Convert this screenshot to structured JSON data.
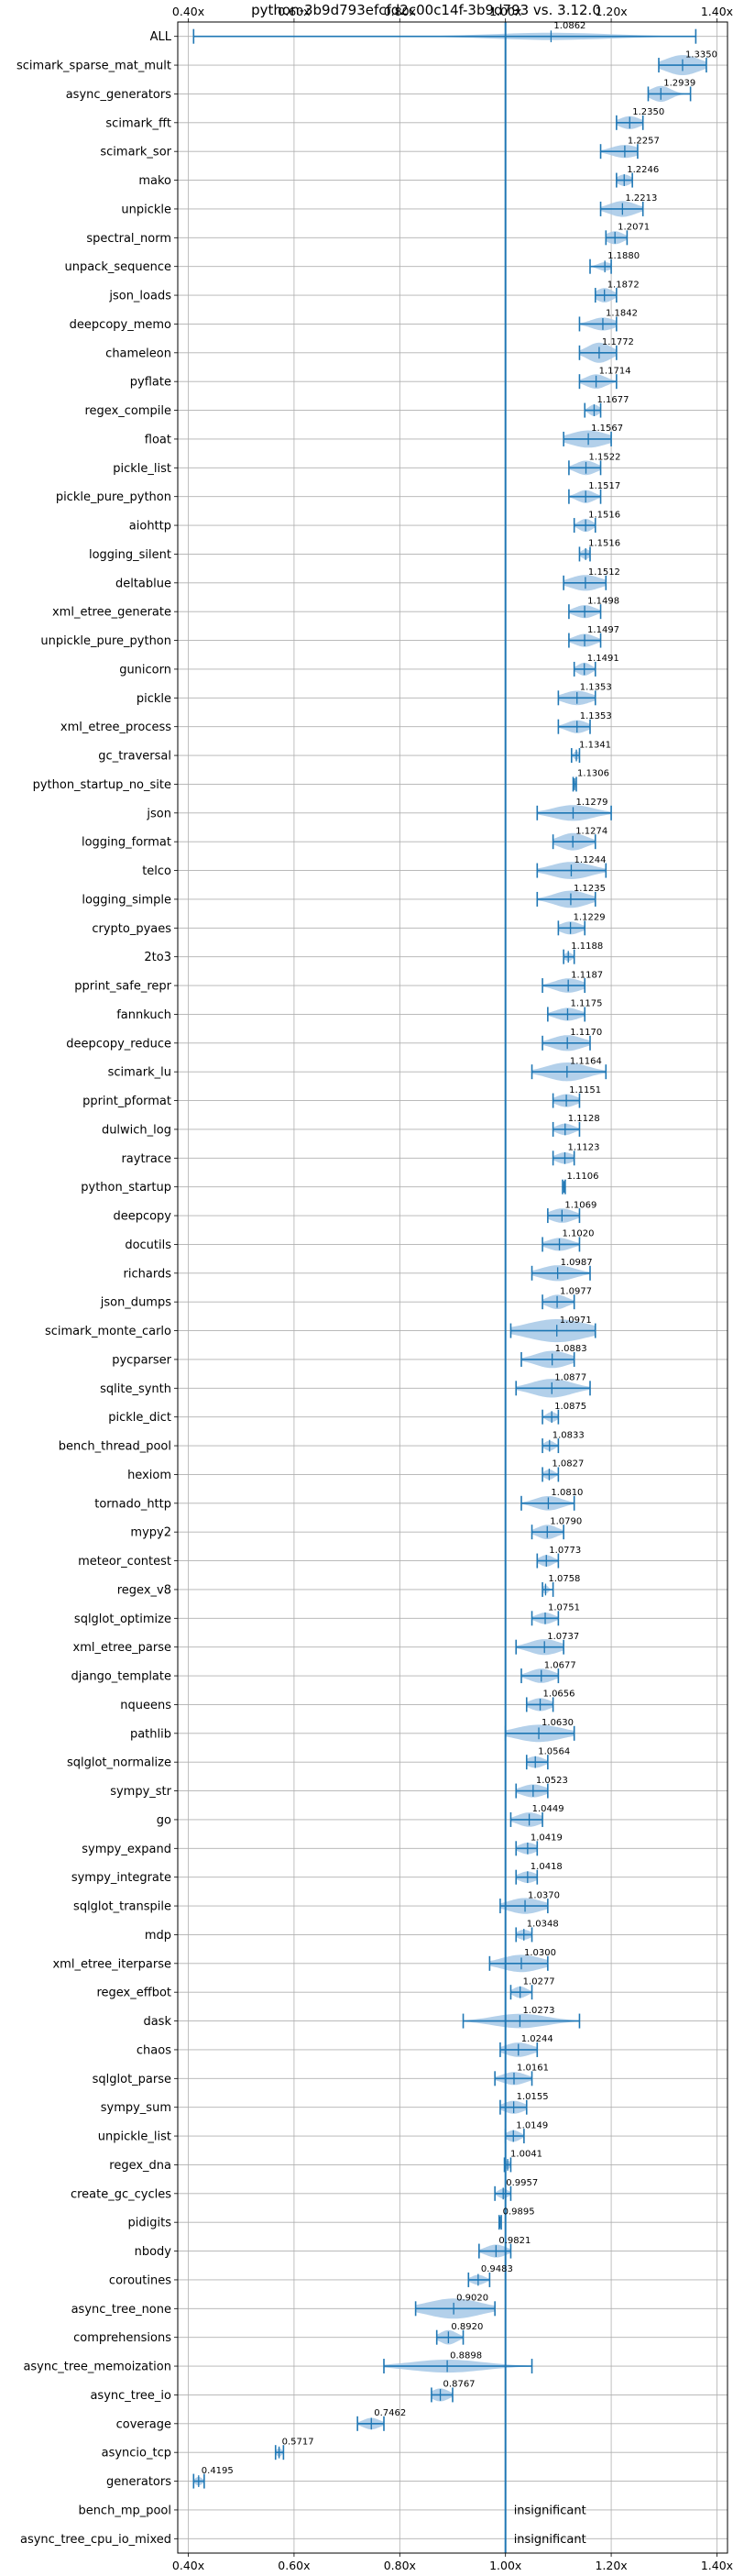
{
  "chart_data": {
    "type": "violin",
    "title": "python-3b9d793efcfd2c00c14f-3b9d793 vs. 3.12.0",
    "xlabel": "",
    "ylabel": "",
    "xlim": [
      0.38,
      1.42
    ],
    "x_ticks": [
      {
        "value": 0.4,
        "label": "0.40x"
      },
      {
        "value": 0.6,
        "label": "0.60x"
      },
      {
        "value": 0.8,
        "label": "0.80x"
      },
      {
        "value": 1.0,
        "label": "1.00x"
      },
      {
        "value": 1.2,
        "label": "1.20x"
      },
      {
        "value": 1.4,
        "label": "1.40x"
      }
    ],
    "grid": true,
    "reference_line": 1.0,
    "accent_color": "#1f77b4",
    "violin_color": "#a6c8e6",
    "insignificant_label": "insignificant",
    "benchmarks": [
      {
        "name": "ALL",
        "value": 1.0862,
        "label": "1.0862",
        "min": 0.41,
        "max": 1.36,
        "q1": 1.0,
        "q3": 1.18,
        "w": 0.25
      },
      {
        "name": "scimark_sparse_mat_mult",
        "value": 1.335,
        "label": "1.3350",
        "min": 1.29,
        "max": 1.38,
        "q1": 1.31,
        "q3": 1.36,
        "w": 0.7
      },
      {
        "name": "async_generators",
        "value": 1.2939,
        "label": "1.2939",
        "min": 1.27,
        "max": 1.35,
        "q1": 1.28,
        "q3": 1.31,
        "w": 0.55
      },
      {
        "name": "scimark_fft",
        "value": 1.235,
        "label": "1.2350",
        "min": 1.21,
        "max": 1.26,
        "q1": 1.22,
        "q3": 1.25,
        "w": 0.45
      },
      {
        "name": "scimark_sor",
        "value": 1.2257,
        "label": "1.2257",
        "min": 1.18,
        "max": 1.25,
        "q1": 1.2,
        "q3": 1.24,
        "w": 0.45
      },
      {
        "name": "mako",
        "value": 1.2246,
        "label": "1.2246",
        "min": 1.21,
        "max": 1.24,
        "q1": 1.215,
        "q3": 1.235,
        "w": 0.4
      },
      {
        "name": "unpickle",
        "value": 1.2213,
        "label": "1.2213",
        "min": 1.18,
        "max": 1.26,
        "q1": 1.2,
        "q3": 1.24,
        "w": 0.55
      },
      {
        "name": "spectral_norm",
        "value": 1.2071,
        "label": "1.2071",
        "min": 1.19,
        "max": 1.23,
        "q1": 1.195,
        "q3": 1.22,
        "w": 0.45
      },
      {
        "name": "unpack_sequence",
        "value": 1.188,
        "label": "1.1880",
        "min": 1.16,
        "max": 1.2,
        "q1": 1.175,
        "q3": 1.195,
        "w": 0.3
      },
      {
        "name": "json_loads",
        "value": 1.1872,
        "label": "1.1872",
        "min": 1.17,
        "max": 1.21,
        "q1": 1.175,
        "q3": 1.2,
        "w": 0.5
      },
      {
        "name": "deepcopy_memo",
        "value": 1.1842,
        "label": "1.1842",
        "min": 1.14,
        "max": 1.21,
        "q1": 1.165,
        "q3": 1.2,
        "w": 0.45
      },
      {
        "name": "chameleon",
        "value": 1.1772,
        "label": "1.1772",
        "min": 1.14,
        "max": 1.21,
        "q1": 1.16,
        "q3": 1.195,
        "w": 0.7
      },
      {
        "name": "pyflate",
        "value": 1.1714,
        "label": "1.1714",
        "min": 1.14,
        "max": 1.21,
        "q1": 1.16,
        "q3": 1.19,
        "w": 0.5
      },
      {
        "name": "regex_compile",
        "value": 1.1677,
        "label": "1.1677",
        "min": 1.15,
        "max": 1.18,
        "q1": 1.16,
        "q3": 1.175,
        "w": 0.4
      },
      {
        "name": "float",
        "value": 1.1567,
        "label": "1.1567",
        "min": 1.11,
        "max": 1.2,
        "q1": 1.13,
        "q3": 1.185,
        "w": 0.6
      },
      {
        "name": "pickle_list",
        "value": 1.1522,
        "label": "1.1522",
        "min": 1.12,
        "max": 1.18,
        "q1": 1.14,
        "q3": 1.17,
        "w": 0.5
      },
      {
        "name": "pickle_pure_python",
        "value": 1.1517,
        "label": "1.1517",
        "min": 1.12,
        "max": 1.18,
        "q1": 1.14,
        "q3": 1.165,
        "w": 0.45
      },
      {
        "name": "aiohttp",
        "value": 1.1516,
        "label": "1.1516",
        "min": 1.13,
        "max": 1.17,
        "q1": 1.14,
        "q3": 1.16,
        "w": 0.45
      },
      {
        "name": "logging_silent",
        "value": 1.1516,
        "label": "1.1516",
        "min": 1.14,
        "max": 1.16,
        "q1": 1.145,
        "q3": 1.158,
        "w": 0.35
      },
      {
        "name": "deltablue",
        "value": 1.1512,
        "label": "1.1512",
        "min": 1.11,
        "max": 1.19,
        "q1": 1.13,
        "q3": 1.175,
        "w": 0.55
      },
      {
        "name": "xml_etree_generate",
        "value": 1.1498,
        "label": "1.1498",
        "min": 1.12,
        "max": 1.18,
        "q1": 1.135,
        "q3": 1.165,
        "w": 0.45
      },
      {
        "name": "unpickle_pure_python",
        "value": 1.1497,
        "label": "1.1497",
        "min": 1.12,
        "max": 1.18,
        "q1": 1.135,
        "q3": 1.165,
        "w": 0.45
      },
      {
        "name": "gunicorn",
        "value": 1.1491,
        "label": "1.1491",
        "min": 1.13,
        "max": 1.17,
        "q1": 1.14,
        "q3": 1.16,
        "w": 0.45
      },
      {
        "name": "pickle",
        "value": 1.1353,
        "label": "1.1353",
        "min": 1.1,
        "max": 1.17,
        "q1": 1.115,
        "q3": 1.155,
        "w": 0.5
      },
      {
        "name": "xml_etree_process",
        "value": 1.1353,
        "label": "1.1353",
        "min": 1.1,
        "max": 1.16,
        "q1": 1.12,
        "q3": 1.15,
        "w": 0.45
      },
      {
        "name": "gc_traversal",
        "value": 1.1341,
        "label": "1.1341",
        "min": 1.125,
        "max": 1.14,
        "q1": 1.13,
        "q3": 1.138,
        "w": 0.3
      },
      {
        "name": "python_startup_no_site",
        "value": 1.1306,
        "label": "1.1306",
        "min": 1.128,
        "max": 1.134,
        "q1": 1.129,
        "q3": 1.132,
        "w": 0.25
      },
      {
        "name": "json",
        "value": 1.1279,
        "label": "1.1279",
        "min": 1.06,
        "max": 1.2,
        "q1": 1.1,
        "q3": 1.16,
        "w": 0.55
      },
      {
        "name": "logging_format",
        "value": 1.1274,
        "label": "1.1274",
        "min": 1.09,
        "max": 1.17,
        "q1": 1.11,
        "q3": 1.15,
        "w": 0.6
      },
      {
        "name": "telco",
        "value": 1.1244,
        "label": "1.1244",
        "min": 1.06,
        "max": 1.19,
        "q1": 1.1,
        "q3": 1.16,
        "w": 0.6
      },
      {
        "name": "logging_simple",
        "value": 1.1235,
        "label": "1.1235",
        "min": 1.06,
        "max": 1.17,
        "q1": 1.1,
        "q3": 1.15,
        "w": 0.6
      },
      {
        "name": "crypto_pyaes",
        "value": 1.1229,
        "label": "1.1229",
        "min": 1.1,
        "max": 1.15,
        "q1": 1.11,
        "q3": 1.14,
        "w": 0.45
      },
      {
        "name": "2to3",
        "value": 1.1188,
        "label": "1.1188",
        "min": 1.11,
        "max": 1.13,
        "q1": 1.113,
        "q3": 1.125,
        "w": 0.3
      },
      {
        "name": "pprint_safe_repr",
        "value": 1.1187,
        "label": "1.1187",
        "min": 1.07,
        "max": 1.15,
        "q1": 1.1,
        "q3": 1.14,
        "w": 0.5
      },
      {
        "name": "fannkuch",
        "value": 1.1175,
        "label": "1.1175",
        "min": 1.08,
        "max": 1.15,
        "q1": 1.1,
        "q3": 1.135,
        "w": 0.45
      },
      {
        "name": "deepcopy_reduce",
        "value": 1.117,
        "label": "1.1170",
        "min": 1.07,
        "max": 1.16,
        "q1": 1.095,
        "q3": 1.14,
        "w": 0.55
      },
      {
        "name": "scimark_lu",
        "value": 1.1164,
        "label": "1.1164",
        "min": 1.05,
        "max": 1.19,
        "q1": 1.09,
        "q3": 1.15,
        "w": 0.65
      },
      {
        "name": "pprint_pformat",
        "value": 1.1151,
        "label": "1.1151",
        "min": 1.09,
        "max": 1.14,
        "q1": 1.1,
        "q3": 1.13,
        "w": 0.45
      },
      {
        "name": "dulwich_log",
        "value": 1.1128,
        "label": "1.1128",
        "min": 1.09,
        "max": 1.14,
        "q1": 1.1,
        "q3": 1.125,
        "w": 0.4
      },
      {
        "name": "raytrace",
        "value": 1.1123,
        "label": "1.1123",
        "min": 1.09,
        "max": 1.13,
        "q1": 1.1,
        "q3": 1.125,
        "w": 0.4
      },
      {
        "name": "python_startup",
        "value": 1.1106,
        "label": "1.1106",
        "min": 1.108,
        "max": 1.113,
        "q1": 1.109,
        "q3": 1.112,
        "w": 0.25
      },
      {
        "name": "deepcopy",
        "value": 1.1069,
        "label": "1.1069",
        "min": 1.08,
        "max": 1.14,
        "q1": 1.09,
        "q3": 1.125,
        "w": 0.5
      },
      {
        "name": "docutils",
        "value": 1.102,
        "label": "1.1020",
        "min": 1.07,
        "max": 1.14,
        "q1": 1.085,
        "q3": 1.12,
        "w": 0.45
      },
      {
        "name": "richards",
        "value": 1.0987,
        "label": "1.0987",
        "min": 1.05,
        "max": 1.16,
        "q1": 1.08,
        "q3": 1.13,
        "w": 0.55
      },
      {
        "name": "json_dumps",
        "value": 1.0977,
        "label": "1.0977",
        "min": 1.07,
        "max": 1.13,
        "q1": 1.085,
        "q3": 1.115,
        "w": 0.5
      },
      {
        "name": "scimark_monte_carlo",
        "value": 1.0971,
        "label": "1.0971",
        "min": 1.01,
        "max": 1.17,
        "q1": 1.05,
        "q3": 1.14,
        "w": 0.8
      },
      {
        "name": "pycparser",
        "value": 1.0883,
        "label": "1.0883",
        "min": 1.03,
        "max": 1.13,
        "q1": 1.06,
        "q3": 1.11,
        "w": 0.6
      },
      {
        "name": "sqlite_synth",
        "value": 1.0877,
        "label": "1.0877",
        "min": 1.02,
        "max": 1.16,
        "q1": 1.06,
        "q3": 1.12,
        "w": 0.65
      },
      {
        "name": "pickle_dict",
        "value": 1.0875,
        "label": "1.0875",
        "min": 1.07,
        "max": 1.1,
        "q1": 1.08,
        "q3": 1.095,
        "w": 0.35
      },
      {
        "name": "bench_thread_pool",
        "value": 1.0833,
        "label": "1.0833",
        "min": 1.07,
        "max": 1.1,
        "q1": 1.075,
        "q3": 1.09,
        "w": 0.35
      },
      {
        "name": "hexiom",
        "value": 1.0827,
        "label": "1.0827",
        "min": 1.07,
        "max": 1.1,
        "q1": 1.075,
        "q3": 1.09,
        "w": 0.35
      },
      {
        "name": "tornado_http",
        "value": 1.081,
        "label": "1.0810",
        "min": 1.03,
        "max": 1.13,
        "q1": 1.06,
        "q3": 1.1,
        "w": 0.5
      },
      {
        "name": "mypy2",
        "value": 1.079,
        "label": "1.0790",
        "min": 1.05,
        "max": 1.11,
        "q1": 1.065,
        "q3": 1.095,
        "w": 0.5
      },
      {
        "name": "meteor_contest",
        "value": 1.0773,
        "label": "1.0773",
        "min": 1.06,
        "max": 1.1,
        "q1": 1.07,
        "q3": 1.09,
        "w": 0.4
      },
      {
        "name": "regex_v8",
        "value": 1.0758,
        "label": "1.0758",
        "min": 1.07,
        "max": 1.09,
        "q1": 1.072,
        "q3": 1.08,
        "w": 0.3
      },
      {
        "name": "sqlglot_optimize",
        "value": 1.0751,
        "label": "1.0751",
        "min": 1.05,
        "max": 1.1,
        "q1": 1.065,
        "q3": 1.09,
        "w": 0.4
      },
      {
        "name": "xml_etree_parse",
        "value": 1.0737,
        "label": "1.0737",
        "min": 1.02,
        "max": 1.11,
        "q1": 1.05,
        "q3": 1.095,
        "w": 0.55
      },
      {
        "name": "django_template",
        "value": 1.0677,
        "label": "1.0677",
        "min": 1.03,
        "max": 1.1,
        "q1": 1.05,
        "q3": 1.085,
        "w": 0.5
      },
      {
        "name": "nqueens",
        "value": 1.0656,
        "label": "1.0656",
        "min": 1.04,
        "max": 1.09,
        "q1": 1.05,
        "q3": 1.08,
        "w": 0.45
      },
      {
        "name": "pathlib",
        "value": 1.063,
        "label": "1.0630",
        "min": 1.0,
        "max": 1.13,
        "q1": 1.03,
        "q3": 1.1,
        "w": 0.6
      },
      {
        "name": "sqlglot_normalize",
        "value": 1.0564,
        "label": "1.0564",
        "min": 1.04,
        "max": 1.08,
        "q1": 1.045,
        "q3": 1.07,
        "w": 0.4
      },
      {
        "name": "sympy_str",
        "value": 1.0523,
        "label": "1.0523",
        "min": 1.02,
        "max": 1.08,
        "q1": 1.035,
        "q3": 1.07,
        "w": 0.45
      },
      {
        "name": "go",
        "value": 1.0449,
        "label": "1.0449",
        "min": 1.01,
        "max": 1.07,
        "q1": 1.025,
        "q3": 1.06,
        "w": 0.5
      },
      {
        "name": "sympy_expand",
        "value": 1.0419,
        "label": "1.0419",
        "min": 1.02,
        "max": 1.06,
        "q1": 1.03,
        "q3": 1.055,
        "w": 0.4
      },
      {
        "name": "sympy_integrate",
        "value": 1.0418,
        "label": "1.0418",
        "min": 1.02,
        "max": 1.06,
        "q1": 1.03,
        "q3": 1.055,
        "w": 0.4
      },
      {
        "name": "sqlglot_transpile",
        "value": 1.037,
        "label": "1.0370",
        "min": 0.99,
        "max": 1.08,
        "q1": 1.01,
        "q3": 1.06,
        "w": 0.55
      },
      {
        "name": "mdp",
        "value": 1.0348,
        "label": "1.0348",
        "min": 1.02,
        "max": 1.05,
        "q1": 1.025,
        "q3": 1.045,
        "w": 0.35
      },
      {
        "name": "xml_etree_iterparse",
        "value": 1.03,
        "label": "1.0300",
        "min": 0.97,
        "max": 1.08,
        "q1": 1.0,
        "q3": 1.06,
        "w": 0.6
      },
      {
        "name": "regex_effbot",
        "value": 1.0277,
        "label": "1.0277",
        "min": 1.01,
        "max": 1.05,
        "q1": 1.02,
        "q3": 1.04,
        "w": 0.4
      },
      {
        "name": "dask",
        "value": 1.0273,
        "label": "1.0273",
        "min": 0.92,
        "max": 1.14,
        "q1": 0.99,
        "q3": 1.07,
        "w": 0.5
      },
      {
        "name": "chaos",
        "value": 1.0244,
        "label": "1.0244",
        "min": 0.99,
        "max": 1.06,
        "q1": 1.005,
        "q3": 1.045,
        "w": 0.5
      },
      {
        "name": "sqlglot_parse",
        "value": 1.0161,
        "label": "1.0161",
        "min": 0.98,
        "max": 1.05,
        "q1": 1.0,
        "q3": 1.035,
        "w": 0.45
      },
      {
        "name": "sympy_sum",
        "value": 1.0155,
        "label": "1.0155",
        "min": 0.99,
        "max": 1.04,
        "q1": 1.0,
        "q3": 1.03,
        "w": 0.45
      },
      {
        "name": "unpickle_list",
        "value": 1.0149,
        "label": "1.0149",
        "min": 1.0,
        "max": 1.035,
        "q1": 1.005,
        "q3": 1.025,
        "w": 0.4
      },
      {
        "name": "regex_dna",
        "value": 1.0041,
        "label": "1.0041",
        "min": 0.998,
        "max": 1.01,
        "q1": 1.0,
        "q3": 1.008,
        "w": 0.3
      },
      {
        "name": "create_gc_cycles",
        "value": 0.9957,
        "label": "0.9957",
        "min": 0.98,
        "max": 1.01,
        "q1": 0.988,
        "q3": 1.003,
        "w": 0.35
      },
      {
        "name": "pidigits",
        "value": 0.9895,
        "label": "0.9895",
        "min": 0.988,
        "max": 0.992,
        "q1": 0.989,
        "q3": 0.991,
        "w": 0.2
      },
      {
        "name": "nbody",
        "value": 0.9821,
        "label": "0.9821",
        "min": 0.95,
        "max": 1.01,
        "q1": 0.965,
        "q3": 0.995,
        "w": 0.45
      },
      {
        "name": "coroutines",
        "value": 0.9483,
        "label": "0.9483",
        "min": 0.93,
        "max": 0.97,
        "q1": 0.94,
        "q3": 0.96,
        "w": 0.35
      },
      {
        "name": "async_tree_none",
        "value": 0.902,
        "label": "0.9020",
        "min": 0.83,
        "max": 0.98,
        "q1": 0.86,
        "q3": 0.94,
        "w": 0.7
      },
      {
        "name": "comprehensions",
        "value": 0.892,
        "label": "0.8920",
        "min": 0.87,
        "max": 0.92,
        "q1": 0.88,
        "q3": 0.905,
        "w": 0.5
      },
      {
        "name": "async_tree_memoization",
        "value": 0.8898,
        "label": "0.8898",
        "min": 0.77,
        "max": 1.05,
        "q1": 0.84,
        "q3": 0.95,
        "w": 0.45
      },
      {
        "name": "async_tree_io",
        "value": 0.8767,
        "label": "0.8767",
        "min": 0.86,
        "max": 0.9,
        "q1": 0.865,
        "q3": 0.89,
        "w": 0.45
      },
      {
        "name": "coverage",
        "value": 0.7462,
        "label": "0.7462",
        "min": 0.72,
        "max": 0.77,
        "q1": 0.735,
        "q3": 0.76,
        "w": 0.4
      },
      {
        "name": "asyncio_tcp",
        "value": 0.5717,
        "label": "0.5717",
        "min": 0.565,
        "max": 0.58,
        "q1": 0.568,
        "q3": 0.576,
        "w": 0.3
      },
      {
        "name": "generators",
        "value": 0.4195,
        "label": "0.4195",
        "min": 0.41,
        "max": 0.43,
        "q1": 0.414,
        "q3": 0.425,
        "w": 0.3
      },
      {
        "name": "bench_mp_pool",
        "value": null,
        "label": "insignificant"
      },
      {
        "name": "async_tree_cpu_io_mixed",
        "value": null,
        "label": "insignificant"
      }
    ]
  }
}
